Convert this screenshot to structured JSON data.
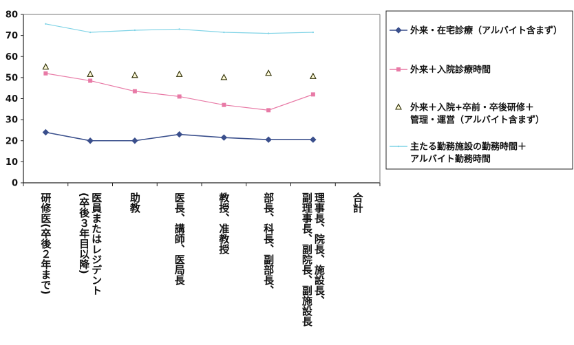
{
  "chart_data": {
    "type": "line",
    "categories": [
      "研修医(卒後２年まで)",
      "医員またはレジデント(卒後３年目以降)",
      "助教",
      "医長、講師、医局長",
      "教授、准教授",
      "部長、科長、副部長、",
      "理事長、院長、施設長、副理事長、副院長、副施設長",
      "合計"
    ],
    "category_lines": [
      [
        "研修医(卒後２年まで)"
      ],
      [
        "医員またはレジデント",
        "(卒後３年目以降)"
      ],
      [
        "助教"
      ],
      [
        "医長、講師、医局長"
      ],
      [
        "教授、准教授"
      ],
      [
        "部長、科長、副部長、"
      ],
      [
        "理事長、院長、施設長、",
        "副理事長、副院長、副施設長"
      ],
      [
        "合計"
      ]
    ],
    "series": [
      {
        "name": "外来・在宅診療（アルバイト含まず）",
        "marker": "diamond",
        "line": true,
        "color": "#3a4f8c",
        "values": [
          24,
          20,
          20,
          23,
          21.5,
          20.5,
          20.5,
          null
        ]
      },
      {
        "name": "外来＋入院診療時間",
        "marker": "square",
        "line": true,
        "color": "#e87aa6",
        "values": [
          52,
          48.5,
          43.5,
          41,
          37,
          34.5,
          42,
          null
        ]
      },
      {
        "name": "外来＋入院+卒前・卒後研修＋管理・運営（アルバイト含まず）",
        "marker": "triangle",
        "line": false,
        "color": "#2a2a00",
        "values": [
          55,
          51.5,
          51,
          51.5,
          50,
          52,
          50.5,
          null
        ]
      },
      {
        "name": "主たる勤務施設の勤務時間＋アルバイト勤務時間",
        "marker": "none",
        "line": true,
        "color": "#7fd3e6",
        "values": [
          75.5,
          71.5,
          72.5,
          73,
          71.5,
          71,
          71.5,
          null
        ]
      }
    ],
    "legend_lines": [
      [
        "外来・在宅診療（アルバイト含まず）"
      ],
      [
        "外来＋入院診療時間"
      ],
      [
        "外来＋入院+卒前・卒後研修＋",
        "管理・運営（アルバイト含まず）"
      ],
      [
        "主たる勤務施設の勤務時間＋",
        "アルバイト勤務時間"
      ]
    ],
    "y_ticks": [
      "0",
      "10",
      "20",
      "30",
      "40",
      "50",
      "60",
      "70",
      "80"
    ],
    "ylim": [
      0,
      80
    ],
    "grid": false,
    "legend_position": "right"
  }
}
